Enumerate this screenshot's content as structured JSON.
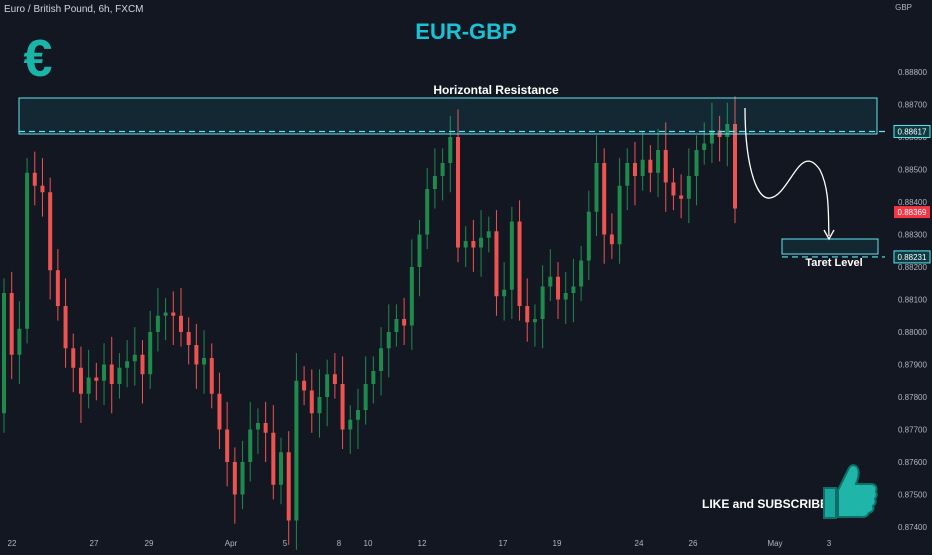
{
  "header": {
    "symbol": "Euro / British Pound, 6h, FXCM",
    "title": "EUR-GBP",
    "currency": "GBP",
    "logo_icon": "euro-sign-icon",
    "cta_text": "LIKE and SUBSCRIBE",
    "cta_icon": "thumbs-up-icon"
  },
  "colors": {
    "background": "#131722",
    "up": "#26a69a",
    "up_fill": "#1e8a4c",
    "down": "#ef5350",
    "accent": "#19c3d6",
    "annotation": "#5fe6f0",
    "price_badge": "#f23645",
    "text": "#d1d4dc"
  },
  "annotations": {
    "resistance_label": "Horizontal Resistance",
    "target_label": "Taret Level",
    "resistance_price": "0.88617",
    "target_price": "0.88231",
    "current_price": "0.88369"
  },
  "chart_data": {
    "type": "candlestick",
    "title": "EUR-GBP",
    "symbol": "Euro / British Pound, 6h, FXCM",
    "ylim": [
      0.8736,
      0.8896
    ],
    "y_ticks": [
      "0.88800",
      "0.88700",
      "0.88600",
      "0.88500",
      "0.88400",
      "0.88300",
      "0.88200",
      "0.88100",
      "0.88000",
      "0.87900",
      "0.87800",
      "0.87700",
      "0.87600",
      "0.87500",
      "0.87400"
    ],
    "x_ticks": [
      "22",
      "27",
      "29",
      "Apr",
      "5",
      "8",
      "10",
      "12",
      "17",
      "19",
      "24",
      "26",
      "May",
      "3"
    ],
    "candles": [
      [
        0.8775,
        0.8812
      ],
      [
        0.8812,
        0.8793
      ],
      [
        0.8793,
        0.8801
      ],
      [
        0.8801,
        0.8849
      ],
      [
        0.8849,
        0.8845
      ],
      [
        0.8845,
        0.8843
      ],
      [
        0.8843,
        0.8819
      ],
      [
        0.8819,
        0.8808
      ],
      [
        0.8808,
        0.8795
      ],
      [
        0.8795,
        0.8789
      ],
      [
        0.8789,
        0.8781
      ],
      [
        0.8781,
        0.8786
      ],
      [
        0.8786,
        0.8785
      ],
      [
        0.8785,
        0.879
      ],
      [
        0.879,
        0.8784
      ],
      [
        0.8784,
        0.8789
      ],
      [
        0.8789,
        0.8791
      ],
      [
        0.8791,
        0.8793
      ],
      [
        0.8793,
        0.8787
      ],
      [
        0.8787,
        0.88
      ],
      [
        0.88,
        0.8805
      ],
      [
        0.8805,
        0.8806
      ],
      [
        0.8806,
        0.8805
      ],
      [
        0.8805,
        0.88
      ],
      [
        0.88,
        0.8796
      ],
      [
        0.8796,
        0.879
      ],
      [
        0.879,
        0.8792
      ],
      [
        0.8792,
        0.8781
      ],
      [
        0.8781,
        0.877
      ],
      [
        0.877,
        0.876
      ],
      [
        0.876,
        0.875
      ],
      [
        0.875,
        0.876
      ],
      [
        0.876,
        0.877
      ],
      [
        0.877,
        0.8772
      ],
      [
        0.8772,
        0.8769
      ],
      [
        0.8769,
        0.8753
      ],
      [
        0.8753,
        0.8763
      ],
      [
        0.8763,
        0.8742
      ],
      [
        0.8742,
        0.8785
      ],
      [
        0.8785,
        0.8782
      ],
      [
        0.8782,
        0.8775
      ],
      [
        0.8775,
        0.878
      ],
      [
        0.878,
        0.8787
      ],
      [
        0.8787,
        0.8784
      ],
      [
        0.8784,
        0.877
      ],
      [
        0.877,
        0.8773
      ],
      [
        0.8773,
        0.8776
      ],
      [
        0.8776,
        0.8784
      ],
      [
        0.8784,
        0.8788
      ],
      [
        0.8788,
        0.8795
      ],
      [
        0.8795,
        0.88
      ],
      [
        0.88,
        0.8804
      ],
      [
        0.8804,
        0.8802
      ],
      [
        0.8802,
        0.882
      ],
      [
        0.882,
        0.883
      ],
      [
        0.883,
        0.8844
      ],
      [
        0.8844,
        0.8848
      ],
      [
        0.8848,
        0.8852
      ],
      [
        0.8852,
        0.886
      ],
      [
        0.886,
        0.8826
      ],
      [
        0.8826,
        0.8828
      ],
      [
        0.8828,
        0.8826
      ],
      [
        0.8826,
        0.8829
      ],
      [
        0.8829,
        0.8831
      ],
      [
        0.8831,
        0.8811
      ],
      [
        0.8811,
        0.8813
      ],
      [
        0.8813,
        0.8834
      ],
      [
        0.8834,
        0.8808
      ],
      [
        0.8808,
        0.8803
      ],
      [
        0.8803,
        0.8804
      ],
      [
        0.8804,
        0.8814
      ],
      [
        0.8814,
        0.8817
      ],
      [
        0.8817,
        0.881
      ],
      [
        0.881,
        0.8812
      ],
      [
        0.8812,
        0.8814
      ],
      [
        0.8814,
        0.8822
      ],
      [
        0.8822,
        0.8837
      ],
      [
        0.8837,
        0.8852
      ],
      [
        0.8852,
        0.883
      ],
      [
        0.883,
        0.8827
      ],
      [
        0.8827,
        0.8845
      ],
      [
        0.8845,
        0.8852
      ],
      [
        0.8852,
        0.8848
      ],
      [
        0.8848,
        0.8853
      ],
      [
        0.8853,
        0.8849
      ],
      [
        0.8849,
        0.8856
      ],
      [
        0.8856,
        0.8846
      ],
      [
        0.8846,
        0.8842
      ],
      [
        0.8842,
        0.8841
      ],
      [
        0.8841,
        0.8848
      ],
      [
        0.8848,
        0.8856
      ],
      [
        0.8856,
        0.8858
      ],
      [
        0.8858,
        0.8862
      ],
      [
        0.8862,
        0.886
      ],
      [
        0.886,
        0.8864
      ],
      [
        0.8864,
        0.8838
      ]
    ],
    "levels": [
      {
        "label": "Horizontal Resistance",
        "price": 0.88617,
        "zone": [
          0.8858,
          0.8866
        ]
      },
      {
        "label": "Taret Level",
        "price": 0.88231,
        "zone": [
          0.8821,
          0.8826
        ]
      }
    ],
    "current_price": 0.88369
  }
}
